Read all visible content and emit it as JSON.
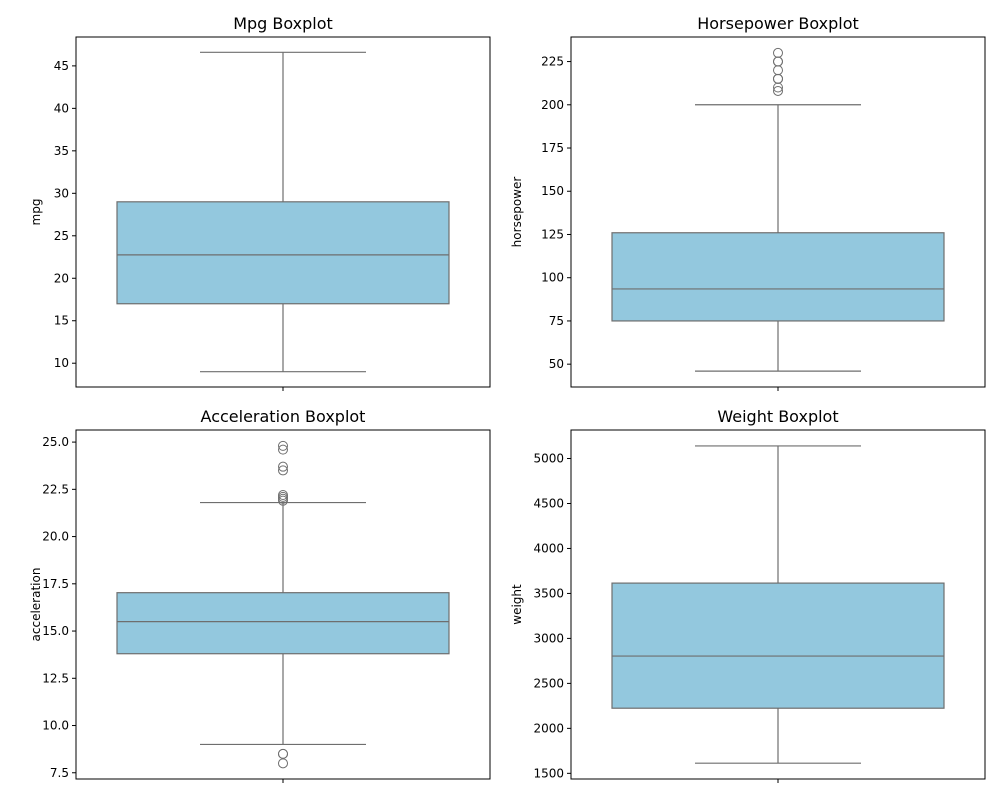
{
  "chart_data": [
    {
      "type": "boxplot",
      "title": "Mpg Boxplot",
      "ylabel": "mpg",
      "ylim": [
        7.2,
        48.4
      ],
      "yticks": [
        10,
        15,
        20,
        25,
        30,
        35,
        40,
        45
      ],
      "ytick_labels": [
        "10",
        "15",
        "20",
        "25",
        "30",
        "35",
        "40",
        "45"
      ],
      "box": {
        "whisker_low": 9,
        "q1": 17,
        "median": 22.75,
        "q3": 29,
        "whisker_high": 46.6
      },
      "outliers": [],
      "color": "#93c8de"
    },
    {
      "type": "boxplot",
      "title": "Horsepower Boxplot",
      "ylabel": "horsepower",
      "ylim": [
        36.8,
        239.2
      ],
      "yticks": [
        50,
        75,
        100,
        125,
        150,
        175,
        200,
        225
      ],
      "ytick_labels": [
        "50",
        "75",
        "100",
        "125",
        "150",
        "175",
        "200",
        "225"
      ],
      "box": {
        "whisker_low": 46,
        "q1": 75,
        "median": 93.5,
        "q3": 126,
        "whisker_high": 200
      },
      "outliers": [
        208,
        210,
        215,
        215,
        220,
        225,
        225,
        230
      ],
      "color": "#93c8de"
    },
    {
      "type": "boxplot",
      "title": "Acceleration Boxplot",
      "ylabel": "acceleration",
      "ylim": [
        7.17,
        25.64
      ],
      "yticks": [
        7.5,
        10.0,
        12.5,
        15.0,
        17.5,
        20.0,
        22.5,
        25.0
      ],
      "ytick_labels": [
        "7.5",
        "10.0",
        "12.5",
        "15.0",
        "17.5",
        "20.0",
        "22.5",
        "25.0"
      ],
      "box": {
        "whisker_low": 9.0,
        "q1": 13.8,
        "median": 15.5,
        "q3": 17.03,
        "whisker_high": 21.8
      },
      "outliers": [
        8.0,
        8.5,
        8.5,
        21.9,
        22.0,
        22.1,
        22.2,
        23.5,
        23.7,
        24.6,
        24.8
      ],
      "color": "#93c8de"
    },
    {
      "type": "boxplot",
      "title": "Weight Boxplot",
      "ylabel": "weight",
      "ylim": [
        1437,
        5317
      ],
      "yticks": [
        1500,
        2000,
        2500,
        3000,
        3500,
        4000,
        4500,
        5000
      ],
      "ytick_labels": [
        "1500",
        "2000",
        "2500",
        "3000",
        "3500",
        "4000",
        "4500",
        "5000"
      ],
      "box": {
        "whisker_low": 1613,
        "q1": 2224,
        "median": 2804,
        "q3": 3615,
        "whisker_high": 5140
      },
      "outliers": [],
      "color": "#93c8de"
    }
  ]
}
